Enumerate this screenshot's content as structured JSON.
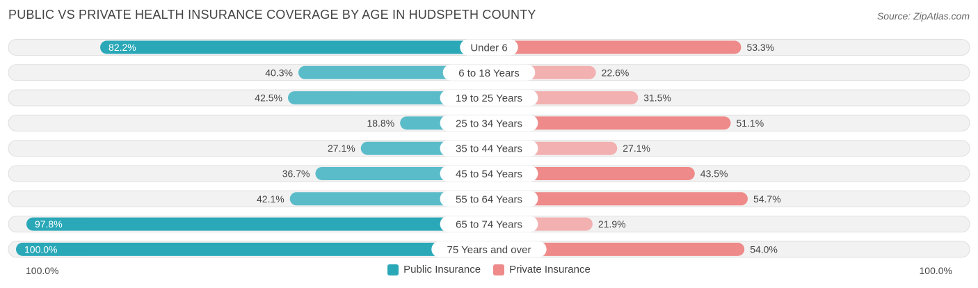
{
  "header": {
    "title": "PUBLIC VS PRIVATE HEALTH INSURANCE COVERAGE BY AGE IN HUDSPETH COUNTY",
    "source": "Source: ZipAtlas.com"
  },
  "colors": {
    "public": "#5bbcc9",
    "public_strong": "#2aa8b8",
    "private": "#ee8a89",
    "private_light": "#f3b0b0",
    "track": "#eeeeee"
  },
  "axis": {
    "left_label": "100.0%",
    "right_label": "100.0%"
  },
  "legend": {
    "public": "Public Insurance",
    "private": "Private Insurance"
  },
  "chart_data": {
    "type": "bar",
    "orientation": "horizontal-diverging",
    "title": "PUBLIC VS PRIVATE HEALTH INSURANCE COVERAGE BY AGE IN HUDSPETH COUNTY",
    "categories": [
      "Under 6",
      "6 to 18 Years",
      "19 to 25 Years",
      "25 to 34 Years",
      "35 to 44 Years",
      "45 to 54 Years",
      "55 to 64 Years",
      "65 to 74 Years",
      "75 Years and over"
    ],
    "series": [
      {
        "name": "Public Insurance",
        "values": [
          82.2,
          40.3,
          42.5,
          18.8,
          27.1,
          36.7,
          42.1,
          97.8,
          100.0
        ],
        "labels": [
          "82.2%",
          "40.3%",
          "42.5%",
          "18.8%",
          "27.1%",
          "36.7%",
          "42.1%",
          "97.8%",
          "100.0%"
        ]
      },
      {
        "name": "Private Insurance",
        "values": [
          53.3,
          22.6,
          31.5,
          51.1,
          27.1,
          43.5,
          54.7,
          21.9,
          54.0
        ],
        "labels": [
          "53.3%",
          "22.6%",
          "31.5%",
          "51.1%",
          "27.1%",
          "43.5%",
          "54.7%",
          "21.9%",
          "54.0%"
        ]
      }
    ],
    "xlim": [
      0,
      100
    ],
    "legend_position": "bottom-center"
  }
}
